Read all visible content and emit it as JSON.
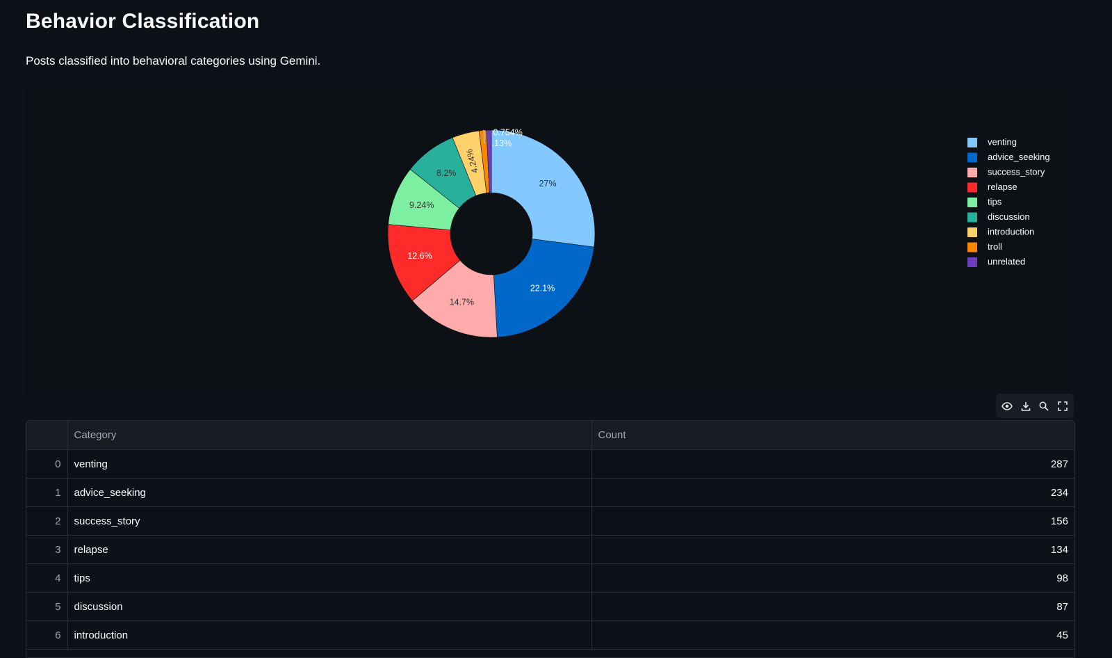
{
  "page": {
    "title": "Behavior Classification",
    "subtitle": "Posts classified into behavioral categories using Gemini."
  },
  "toolbar": {
    "icons": [
      "eye-icon",
      "download-icon",
      "search-icon",
      "fullscreen-icon"
    ]
  },
  "table": {
    "columns": [
      "",
      "Category",
      "Count"
    ],
    "rows": [
      {
        "index": "0",
        "category": "venting",
        "count": "287"
      },
      {
        "index": "1",
        "category": "advice_seeking",
        "count": "234"
      },
      {
        "index": "2",
        "category": "success_story",
        "count": "156"
      },
      {
        "index": "3",
        "category": "relapse",
        "count": "134"
      },
      {
        "index": "4",
        "category": "tips",
        "count": "98"
      },
      {
        "index": "5",
        "category": "discussion",
        "count": "87"
      },
      {
        "index": "6",
        "category": "introduction",
        "count": "45"
      }
    ]
  },
  "chart_data": {
    "type": "pie",
    "hole": true,
    "categories": [
      "venting",
      "advice_seeking",
      "success_story",
      "relapse",
      "tips",
      "discussion",
      "introduction",
      "troll",
      "unrelated"
    ],
    "values": [
      287,
      234,
      156,
      134,
      98,
      87,
      45,
      12,
      8
    ],
    "labels": [
      "27%",
      "22.1%",
      "14.7%",
      "12.6%",
      "9.24%",
      "8.2%",
      "4.24%",
      "1.13%",
      "0.754%"
    ],
    "colors": [
      "#83c9ff",
      "#0068c9",
      "#ffabab",
      "#ff2b2b",
      "#7defa1",
      "#29b09d",
      "#ffd16a",
      "#ff8700",
      "#6d3fc0"
    ],
    "label_colors": [
      "#333333",
      "#ffffff",
      "#333333",
      "#ffffff",
      "#333333",
      "#333333",
      "#333333",
      "#ffffff",
      "#ffffff"
    ],
    "direction": "clockwise",
    "legend": "right"
  }
}
